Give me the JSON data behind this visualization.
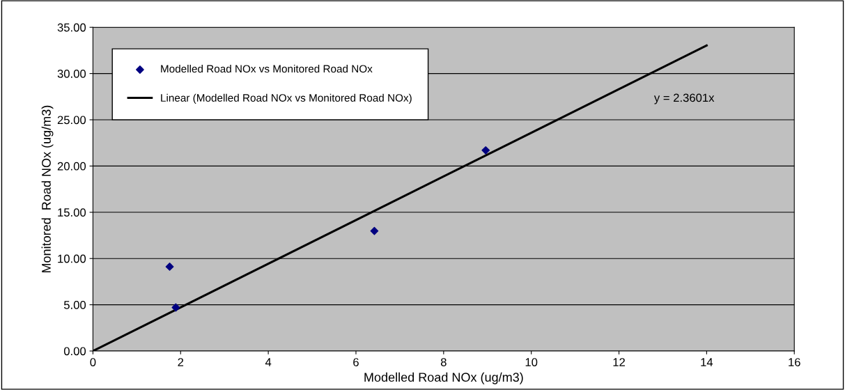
{
  "chart_data": {
    "type": "scatter",
    "xlabel": "Modelled Road NOx (ug/m3)",
    "ylabel": "Monitored  Road NOx (ug/m3)",
    "series": [
      {
        "name": "Modelled Road NOx vs Monitored Road NOx",
        "color": "#000080",
        "marker": "diamond",
        "x": [
          1.75,
          1.89,
          6.42,
          8.96
        ],
        "values": [
          9.12,
          4.71,
          12.98,
          21.7
        ]
      },
      {
        "name": "Linear (Modelled Road NOx vs Monitored Road NOx)",
        "type": "line",
        "color": "#000000",
        "line_style": "solid",
        "marker": "none",
        "x": [
          0,
          14
        ],
        "values": [
          0,
          33.04
        ]
      }
    ],
    "annotations": [
      "y = 2.3601x"
    ],
    "xlim": [
      0,
      16
    ],
    "xticks": [
      0,
      2,
      4,
      6,
      8,
      10,
      12,
      14,
      16
    ],
    "ylim": [
      0,
      35
    ],
    "yticks": [
      {
        "value": 0,
        "label": "0.00"
      },
      {
        "value": 5,
        "label": "5.00"
      },
      {
        "value": 10,
        "label": "10.00"
      },
      {
        "value": 15,
        "label": "15.00"
      },
      {
        "value": 20,
        "label": "20.00"
      },
      {
        "value": 25,
        "label": "25.00"
      },
      {
        "value": 30,
        "label": "30.00"
      },
      {
        "value": 35,
        "label": "35.00"
      }
    ],
    "grid": "y",
    "legend": "top left"
  }
}
